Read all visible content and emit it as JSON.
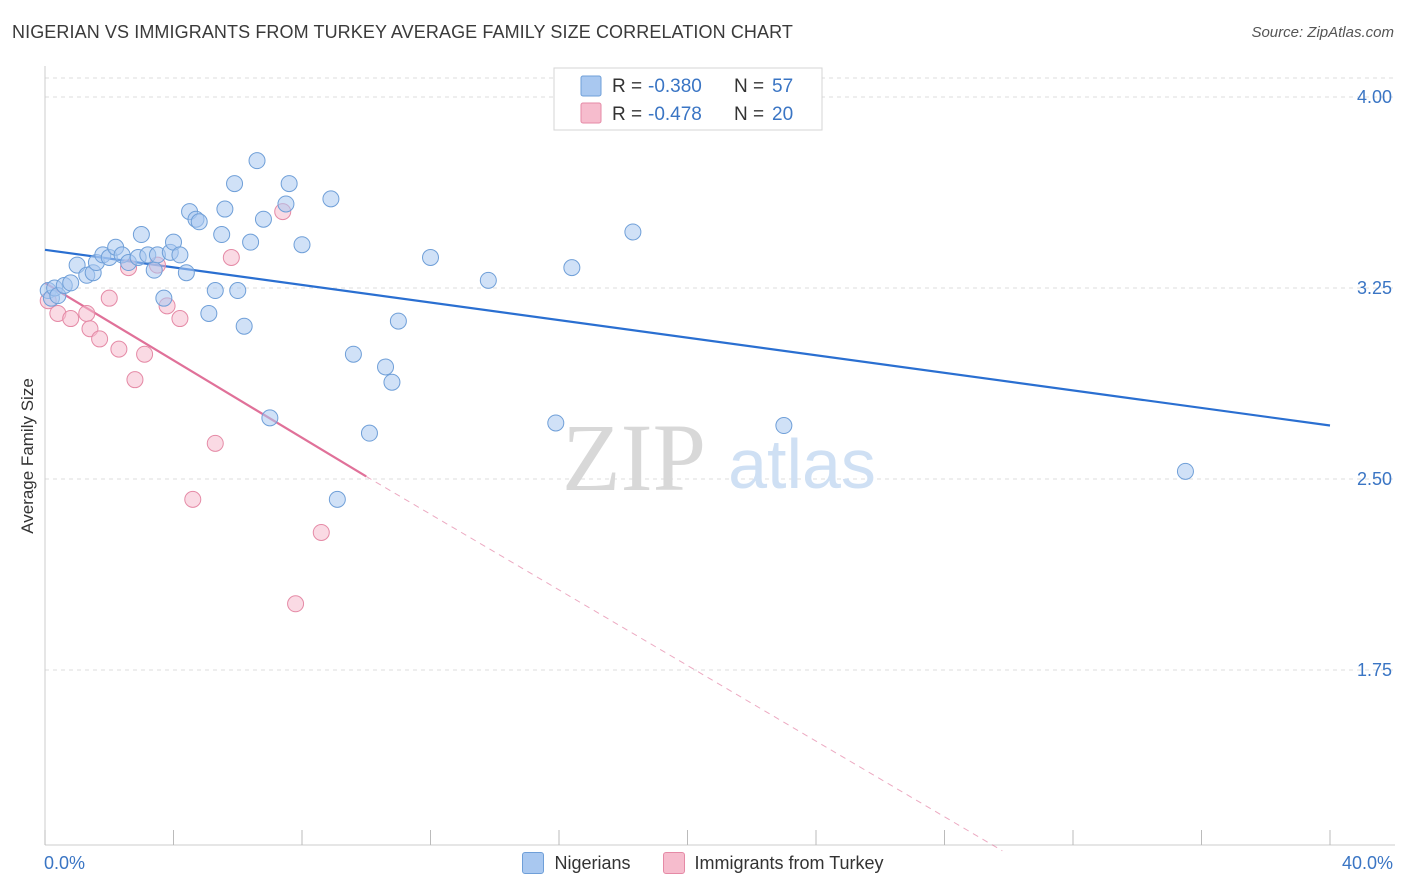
{
  "header": {
    "title": "NIGERIAN VS IMMIGRANTS FROM TURKEY AVERAGE FAMILY SIZE CORRELATION CHART",
    "source": "Source: ZipAtlas.com"
  },
  "watermark": {
    "zip": "ZIP",
    "atlas": "atlas"
  },
  "stats_legend": [
    {
      "r_label": "R =",
      "r_value": "-0.380",
      "n_label": "N =",
      "n_value": "57",
      "color": "#a9c8f0"
    },
    {
      "r_label": "R =",
      "r_value": "-0.478",
      "n_label": "N =",
      "n_value": "20",
      "color": "#f6bccd"
    }
  ],
  "colors": {
    "blue_fill": "#a9c8f0",
    "blue_stroke": "#6f9fd8",
    "blue_line": "#2a6fd1",
    "pink_fill": "#f6bccd",
    "pink_stroke": "#e58aa6",
    "pink_line": "#e07199",
    "value_text": "#3a75c4",
    "grid": "#dcdcdc"
  },
  "chart_data": {
    "type": "scatter",
    "xlabel": "",
    "ylabel": "Average Family Size",
    "xlim": [
      0,
      40
    ],
    "ylim": [
      1.0,
      4.1
    ],
    "x_tick_labels": [
      "0.0%",
      "40.0%"
    ],
    "y_ticks": [
      1.75,
      2.5,
      3.25,
      4.0
    ],
    "y_tick_labels": [
      "1.75",
      "2.50",
      "3.25",
      "4.00"
    ],
    "grid": true,
    "legend_position": "bottom",
    "series": [
      {
        "name": "Nigerians",
        "color": "#a9c8f0",
        "trend": {
          "x0": 0,
          "y0": 3.4,
          "x1": 40,
          "y1": 2.71
        },
        "points": [
          [
            0.1,
            3.24
          ],
          [
            0.2,
            3.21
          ],
          [
            0.3,
            3.25
          ],
          [
            0.4,
            3.22
          ],
          [
            0.6,
            3.26
          ],
          [
            0.8,
            3.27
          ],
          [
            1.0,
            3.34
          ],
          [
            1.3,
            3.3
          ],
          [
            1.5,
            3.31
          ],
          [
            1.6,
            3.35
          ],
          [
            1.8,
            3.38
          ],
          [
            2.0,
            3.37
          ],
          [
            2.2,
            3.41
          ],
          [
            2.4,
            3.38
          ],
          [
            2.6,
            3.35
          ],
          [
            2.9,
            3.37
          ],
          [
            3.0,
            3.46
          ],
          [
            3.2,
            3.38
          ],
          [
            3.4,
            3.32
          ],
          [
            3.5,
            3.38
          ],
          [
            3.7,
            3.21
          ],
          [
            3.9,
            3.39
          ],
          [
            4.0,
            3.43
          ],
          [
            4.2,
            3.38
          ],
          [
            4.4,
            3.31
          ],
          [
            4.5,
            3.55
          ],
          [
            4.7,
            3.52
          ],
          [
            4.8,
            3.51
          ],
          [
            5.1,
            3.15
          ],
          [
            5.3,
            3.24
          ],
          [
            5.5,
            3.46
          ],
          [
            5.6,
            3.56
          ],
          [
            5.9,
            3.66
          ],
          [
            6.0,
            3.24
          ],
          [
            6.2,
            3.1
          ],
          [
            6.4,
            3.43
          ],
          [
            6.6,
            3.75
          ],
          [
            6.8,
            3.52
          ],
          [
            7.0,
            2.74
          ],
          [
            7.5,
            3.58
          ],
          [
            7.6,
            3.66
          ],
          [
            8.0,
            3.42
          ],
          [
            8.9,
            3.6
          ],
          [
            9.1,
            2.42
          ],
          [
            9.6,
            2.99
          ],
          [
            10.1,
            2.68
          ],
          [
            10.6,
            2.94
          ],
          [
            10.8,
            2.88
          ],
          [
            11.0,
            3.12
          ],
          [
            12.0,
            3.37
          ],
          [
            13.8,
            3.28
          ],
          [
            15.9,
            2.72
          ],
          [
            16.4,
            3.33
          ],
          [
            18.3,
            3.47
          ],
          [
            18.8,
            3.91
          ],
          [
            23.0,
            2.71
          ],
          [
            35.5,
            2.53
          ]
        ]
      },
      {
        "name": "Immigrants from Turkey",
        "color": "#f6bccd",
        "trend": {
          "x0": 0,
          "y0": 3.27,
          "x1": 10.0,
          "y1": 2.51,
          "dash_x1": 29.8,
          "dash_y1": 1.04
        },
        "points": [
          [
            0.1,
            3.2
          ],
          [
            0.4,
            3.15
          ],
          [
            0.8,
            3.13
          ],
          [
            1.3,
            3.15
          ],
          [
            1.4,
            3.09
          ],
          [
            1.7,
            3.05
          ],
          [
            2.0,
            3.21
          ],
          [
            2.3,
            3.01
          ],
          [
            2.6,
            3.33
          ],
          [
            2.8,
            2.89
          ],
          [
            3.1,
            2.99
          ],
          [
            3.5,
            3.34
          ],
          [
            3.8,
            3.18
          ],
          [
            4.2,
            3.13
          ],
          [
            4.6,
            2.42
          ],
          [
            5.3,
            2.64
          ],
          [
            5.8,
            3.37
          ],
          [
            7.4,
            3.55
          ],
          [
            7.8,
            2.01
          ],
          [
            8.6,
            2.29
          ]
        ]
      }
    ]
  },
  "legend_bottom": [
    {
      "label": "Nigerians",
      "color": "#a9c8f0"
    },
    {
      "label": "Immigrants from Turkey",
      "color": "#f6bccd"
    }
  ]
}
